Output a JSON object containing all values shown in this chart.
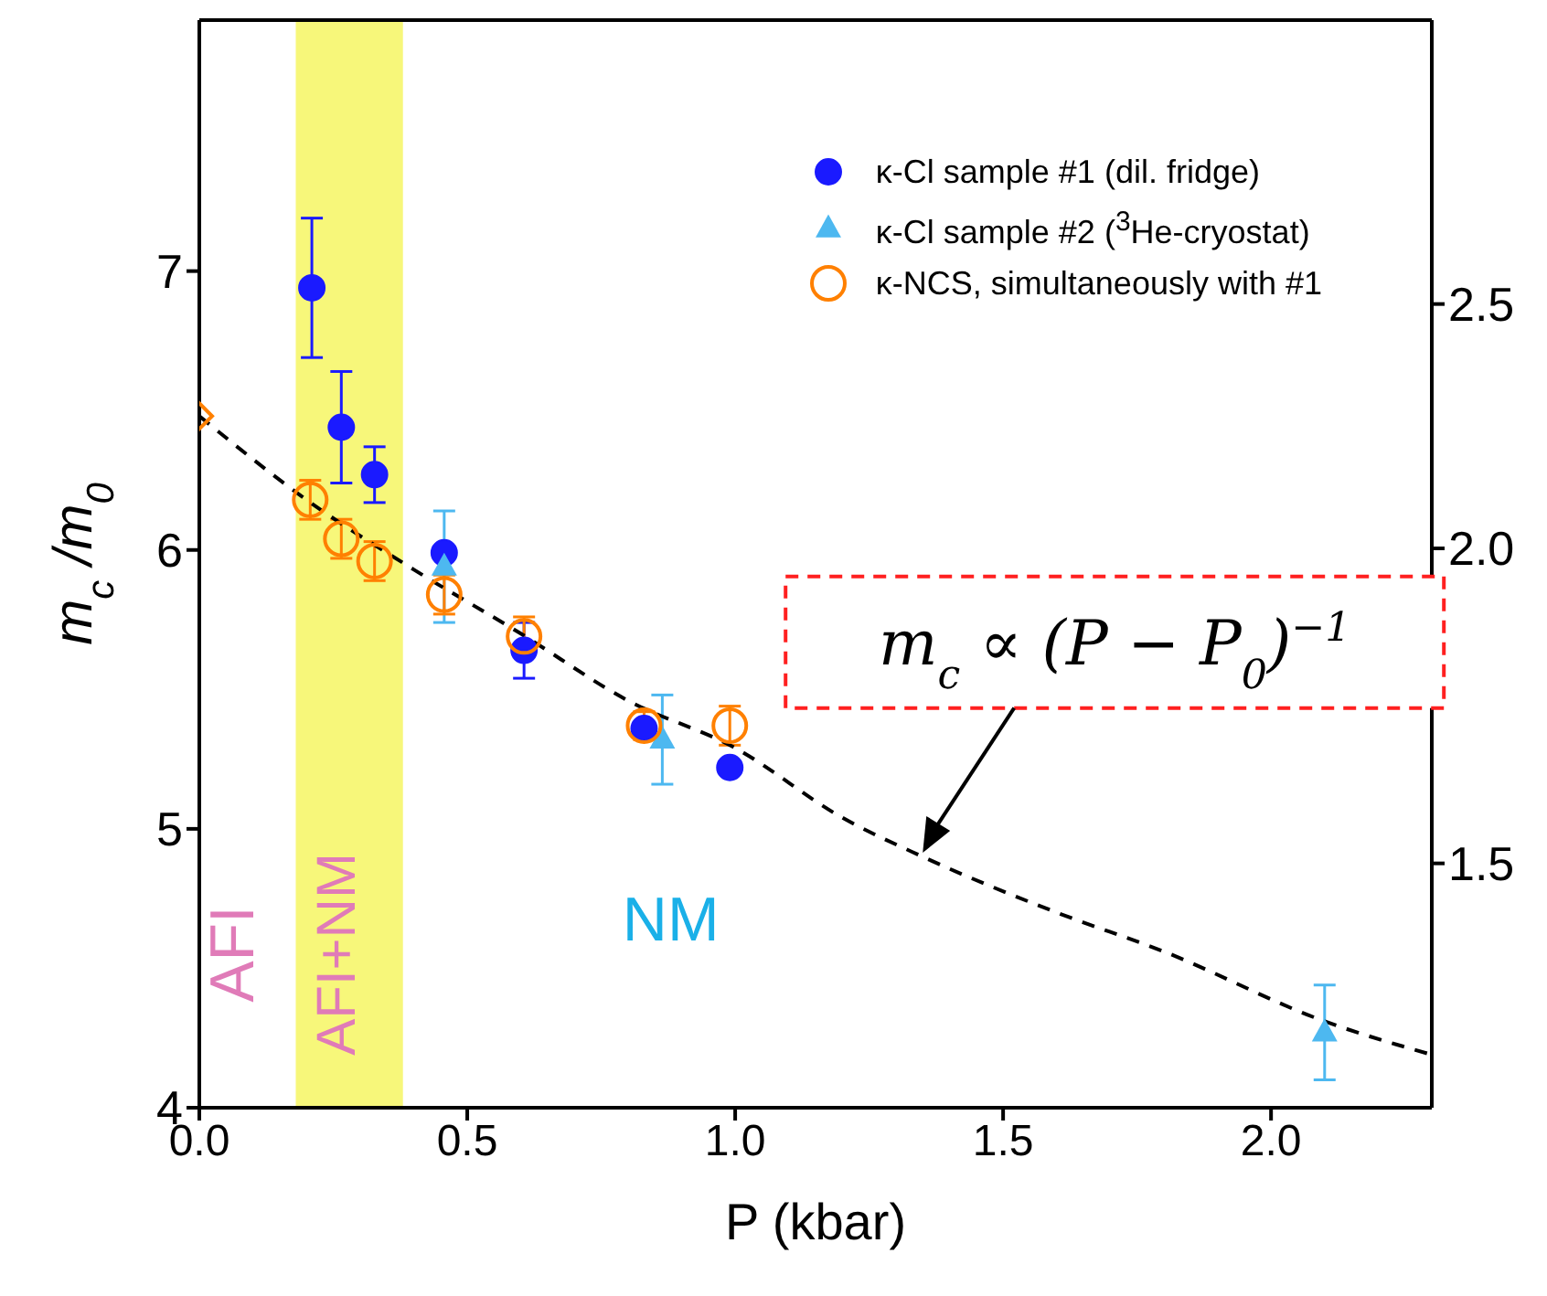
{
  "chart_data": {
    "type": "scatter",
    "xlabel": "P (kbar)",
    "ylabel": "m$_{c}$ /m$_{0}$",
    "xlim": [
      0,
      2.3
    ],
    "xticks": [
      {
        "value": 0,
        "label": "0.0"
      },
      {
        "value": 0.5,
        "label": "0.5"
      },
      {
        "value": 1,
        "label": "1.0"
      },
      {
        "value": 1.5,
        "label": "1.5"
      },
      {
        "value": 2,
        "label": "2.0"
      }
    ],
    "ylim": [
      4,
      7.9
    ],
    "yticks": [
      4,
      5,
      6,
      7
    ],
    "y2lim": [
      1.2,
      3.24
    ],
    "y2ticks": [
      {
        "value": 1.5,
        "label": "1.5"
      },
      {
        "value": 2,
        "label": "2.0"
      },
      {
        "value": 2.5,
        "label": "2.5"
      }
    ],
    "log": "y2",
    "legend": "top right",
    "series": [
      {
        "name": "κ-Cl sample #1 (dil. fridge)",
        "color": "#1a1aff",
        "marker": "circle",
        "x": [
          0.21,
          0.265,
          0.327,
          0.457,
          0.606,
          0.83,
          0.99
        ],
        "values": [
          6.94,
          6.44,
          6.27,
          5.99,
          5.64,
          5.36,
          5.22
        ],
        "errors": [
          0.25,
          0.2,
          0.1,
          null,
          0.1,
          null,
          null
        ]
      },
      {
        "name": "κ-Cl sample #2 ($^{3}$He-cryostat)",
        "color": "#4db8f0",
        "marker": "triangle",
        "x": [
          0.457,
          0.864,
          2.1
        ],
        "values": [
          5.94,
          5.32,
          4.27
        ],
        "errors": [
          0.2,
          0.16,
          0.17
        ]
      },
      {
        "name": "κ-NCS, simultaneously with  #1",
        "color": "#ff8000",
        "marker": "circle",
        "x": [
          0.207,
          0.265,
          0.327,
          0.457,
          0.606,
          0.83,
          0.99
        ],
        "values": [
          6.18,
          6.04,
          5.96,
          5.84,
          5.69,
          5.37,
          5.37
        ],
        "errors": [
          0.07,
          0.07,
          0.07,
          0.07,
          0.07,
          0.05,
          0.07
        ]
      },
      {
        "color": "#ff8000",
        "marker": "diamond",
        "x": [
          0
        ],
        "values": [
          6.48
        ]
      },
      {
        "type": "line",
        "color": "#000000",
        "line_style": "dashed",
        "marker": "none",
        "x": [
          0,
          0.2,
          0.4,
          0.6,
          0.8,
          1.0,
          1.2,
          1.35,
          1.6,
          1.8,
          2.1,
          2.3
        ],
        "values": [
          6.48,
          6.18,
          5.93,
          5.7,
          5.46,
          5.29,
          5.04,
          4.9,
          4.7,
          4.56,
          4.31,
          4.19
        ]
      }
    ],
    "bands": [
      {
        "axis": "x",
        "from": 0.18,
        "to": 0.38,
        "color": "#f7f77a"
      }
    ],
    "annotations": [
      "AFI",
      "AFI+NM",
      "NM",
      {
        "text": "m$_{c}$ ∝ (P − P$_{0}$)$^{−1}$",
        "x": 1.35,
        "y": 4.9
      }
    ]
  }
}
